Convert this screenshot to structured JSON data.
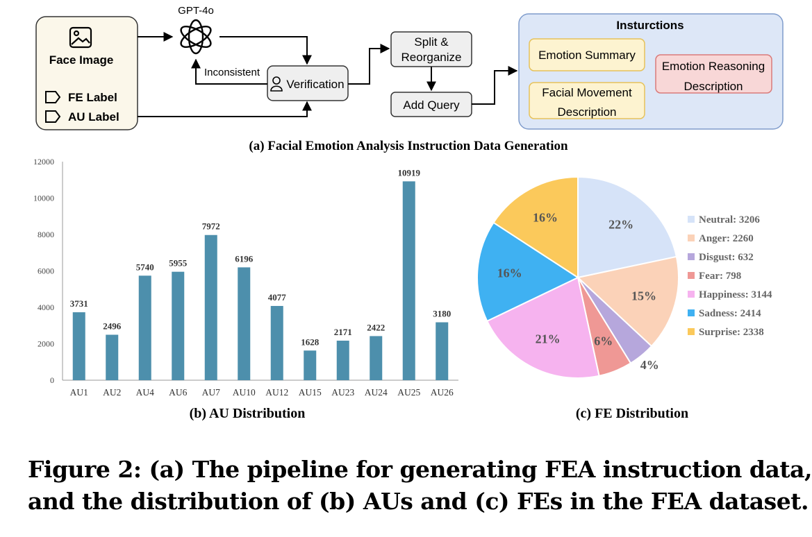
{
  "pipeline": {
    "title": "(a) Facial Emotion Analysis Instruction Data Generation",
    "input": {
      "label": "Face Image",
      "fe_label": "FE Label",
      "au_label": "AU Label"
    },
    "gpt_label": "GPT-4o",
    "verification": "Verification",
    "inconsistent": "Inconsistent",
    "split_line1": "Split &",
    "split_line2": "Reorganize",
    "add_query": "Add Query",
    "instructions": {
      "title": "Insturctions",
      "emotion_summary": "Emotion Summary",
      "facial_movement_line1": "Facial Movement",
      "facial_movement_line2": "Description",
      "emotion_reasoning_line1": "Emotion Reasoning",
      "emotion_reasoning_line2": "Description"
    },
    "colors": {
      "summary_fill": "#fdf3d0",
      "summary_border": "#e6c25a",
      "reasoning_fill": "#f8d7d7",
      "reasoning_border": "#d97a7a",
      "panel_fill": "#dde7f7",
      "panel_border": "#7f9ccc"
    }
  },
  "chart_data": [
    {
      "type": "bar",
      "title": "(b) AU Distribution",
      "categories": [
        "AU1",
        "AU2",
        "AU4",
        "AU6",
        "AU7",
        "AU10",
        "AU12",
        "AU15",
        "AU23",
        "AU24",
        "AU25",
        "AU26"
      ],
      "values": [
        3731,
        2496,
        5740,
        5955,
        7972,
        6196,
        4077,
        1628,
        2171,
        2422,
        10919,
        3180
      ],
      "ylim": [
        0,
        12000
      ],
      "yticks": [
        0,
        2000,
        4000,
        6000,
        8000,
        10000,
        12000
      ],
      "bar_color": "#4d8fac",
      "grid": false
    },
    {
      "type": "pie",
      "title": "(c) FE Distribution",
      "labels": [
        "Neutral",
        "Anger",
        "Disgust",
        "Fear",
        "Happiness",
        "Sadness",
        "Surprise"
      ],
      "values": [
        3206,
        2260,
        632,
        798,
        3144,
        2414,
        2338
      ],
      "percent_labels": [
        "22%",
        "15%",
        "4%",
        "6%",
        "21%",
        "16%",
        "16%"
      ],
      "legend_entries": [
        "Neutral: 3206",
        "Anger: 2260",
        "Disgust: 632",
        "Fear: 798",
        "Happiness: 3144",
        "Sadness: 2414",
        "Surprise: 2338"
      ],
      "colors": [
        "#d6e3f8",
        "#fbd2b8",
        "#b6a7dc",
        "#ef9895",
        "#f6b3ef",
        "#3fb1f2",
        "#fbc95b"
      ],
      "legend_position": "right"
    }
  ],
  "caption": {
    "line1": "Figure 2: (a) The pipeline for generating FEA instruction data,",
    "line2": "and the distribution of (b) AUs and (c) FEs in the FEA dataset."
  }
}
